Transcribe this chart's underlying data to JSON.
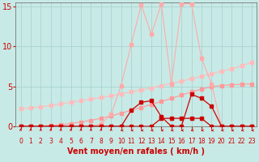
{
  "bg_color": "#c8eae6",
  "grid_color": "#a8d4d0",
  "xlabel": "Vent moyen/en rafales ( km/h )",
  "xlabel_color": "#cc0000",
  "xlabel_fontsize": 7,
  "tick_color": "#cc0000",
  "ytick_fontsize": 7,
  "xtick_fontsize": 5.5,
  "xlim": [
    -0.5,
    23.5
  ],
  "ylim": [
    0,
    15.5
  ],
  "yticks": [
    0,
    5,
    10,
    15
  ],
  "xticks": [
    0,
    1,
    2,
    3,
    4,
    5,
    6,
    7,
    8,
    9,
    10,
    11,
    12,
    13,
    14,
    15,
    16,
    17,
    18,
    19,
    20,
    21,
    22,
    23
  ],
  "line1_x": [
    0,
    1,
    2,
    3,
    4,
    5,
    6,
    7,
    8,
    9,
    10,
    11,
    12,
    13,
    14,
    15,
    16,
    17,
    18,
    19,
    20,
    21,
    22,
    23
  ],
  "line1_y": [
    2.2,
    2.3,
    2.45,
    2.6,
    2.8,
    3.0,
    3.2,
    3.4,
    3.6,
    3.8,
    4.05,
    4.3,
    4.55,
    4.8,
    5.1,
    5.35,
    5.65,
    5.95,
    6.25,
    6.55,
    6.9,
    7.2,
    7.55,
    8.0
  ],
  "line1_color": "#ffbbbb",
  "line2_x": [
    0,
    1,
    2,
    3,
    4,
    5,
    6,
    7,
    8,
    9,
    10,
    11,
    12,
    13,
    14,
    15,
    16,
    17,
    18,
    19,
    20,
    21,
    22,
    23
  ],
  "line2_y": [
    0.0,
    0.0,
    0.05,
    0.1,
    0.2,
    0.35,
    0.55,
    0.75,
    1.0,
    1.3,
    1.65,
    2.0,
    2.35,
    2.75,
    3.1,
    3.5,
    3.9,
    4.3,
    4.65,
    4.95,
    5.1,
    5.2,
    5.25,
    5.3
  ],
  "line2_color": "#ff9999",
  "line3_x": [
    0,
    1,
    2,
    3,
    4,
    5,
    6,
    7,
    8,
    9,
    10,
    11,
    12,
    13,
    14,
    15,
    16,
    17,
    18,
    19,
    20,
    21,
    22,
    23
  ],
  "line3_y": [
    0.0,
    0.0,
    0.0,
    0.0,
    0.0,
    0.0,
    0.0,
    0.0,
    0.3,
    1.5,
    5.1,
    10.2,
    15.2,
    11.5,
    15.3,
    5.3,
    15.3,
    15.3,
    8.5,
    5.3,
    0.0,
    0.0,
    0.0,
    0.0
  ],
  "line3_color": "#ffaaaa",
  "line4_x": [
    0,
    1,
    2,
    3,
    4,
    5,
    6,
    7,
    8,
    9,
    10,
    11,
    12,
    13,
    14,
    15,
    16,
    17,
    18,
    19,
    20,
    21,
    22,
    23
  ],
  "line4_y": [
    0.0,
    0.0,
    0.0,
    0.0,
    0.0,
    0.0,
    0.0,
    0.0,
    0.0,
    0.0,
    0.0,
    2.0,
    3.0,
    3.2,
    1.2,
    0.0,
    0.0,
    4.0,
    3.5,
    2.5,
    0.0,
    0.0,
    0.0,
    0.0
  ],
  "line4_color": "#cc0000",
  "line5_x": [
    0,
    1,
    2,
    3,
    4,
    5,
    6,
    7,
    8,
    9,
    10,
    11,
    12,
    13,
    14,
    15,
    16,
    17,
    18,
    19,
    20,
    21,
    22,
    23
  ],
  "line5_y": [
    0.0,
    0.0,
    0.0,
    0.0,
    0.0,
    0.0,
    0.0,
    0.0,
    0.0,
    0.0,
    0.0,
    0.0,
    0.0,
    0.0,
    1.0,
    1.0,
    1.0,
    1.0,
    1.0,
    0.0,
    0.0,
    0.0,
    0.0,
    0.0
  ],
  "line5_color": "#cc0000",
  "arrow_up_indices": [
    0,
    1,
    2,
    3,
    4,
    5,
    6,
    7,
    8,
    9
  ],
  "arrow_left_indices": [
    10,
    11,
    12,
    13,
    14,
    15,
    16,
    17,
    18,
    19,
    20,
    21,
    22,
    23
  ]
}
